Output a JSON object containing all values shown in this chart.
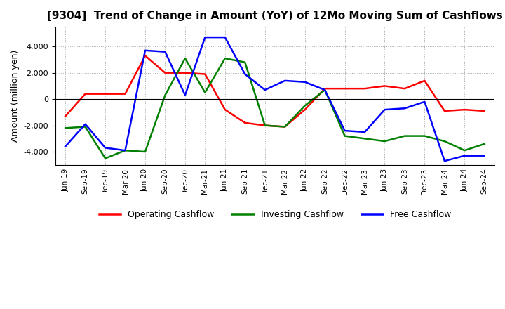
{
  "title": "[9304]  Trend of Change in Amount (YoY) of 12Mo Moving Sum of Cashflows",
  "ylabel": "Amount (million yen)",
  "background_color": "#ffffff",
  "grid_color": "#aaaaaa",
  "ylim": [
    -5000,
    5500
  ],
  "yticks": [
    -4000,
    -2000,
    0,
    2000,
    4000
  ],
  "x_labels": [
    "Jun-19",
    "Sep-19",
    "Dec-19",
    "Mar-20",
    "Jun-20",
    "Sep-20",
    "Dec-20",
    "Mar-21",
    "Jun-21",
    "Sep-21",
    "Dec-21",
    "Mar-22",
    "Jun-22",
    "Sep-22",
    "Dec-22",
    "Mar-23",
    "Jun-23",
    "Sep-23",
    "Dec-23",
    "Mar-24",
    "Jun-24",
    "Sep-24"
  ],
  "operating": [
    -1300,
    400,
    400,
    400,
    3300,
    2000,
    2000,
    1900,
    -800,
    -1800,
    -2000,
    -2100,
    -800,
    800,
    800,
    800,
    1000,
    800,
    1400,
    -900,
    -800,
    -900
  ],
  "investing": [
    -2200,
    -2100,
    -4500,
    -3900,
    -4000,
    300,
    3100,
    500,
    3100,
    2800,
    -2000,
    -2100,
    -500,
    700,
    -2800,
    -3000,
    -3200,
    -2800,
    -2800,
    -3200,
    -3900,
    -3400
  ],
  "free": [
    -3600,
    -1900,
    -3700,
    -3900,
    3700,
    3600,
    300,
    4700,
    4700,
    1900,
    700,
    1400,
    1300,
    700,
    -2400,
    -2500,
    -800,
    -700,
    -200,
    -4700,
    -4300,
    -4300
  ],
  "op_color": "#ff0000",
  "inv_color": "#008000",
  "free_color": "#0000ff",
  "line_width": 1.8
}
